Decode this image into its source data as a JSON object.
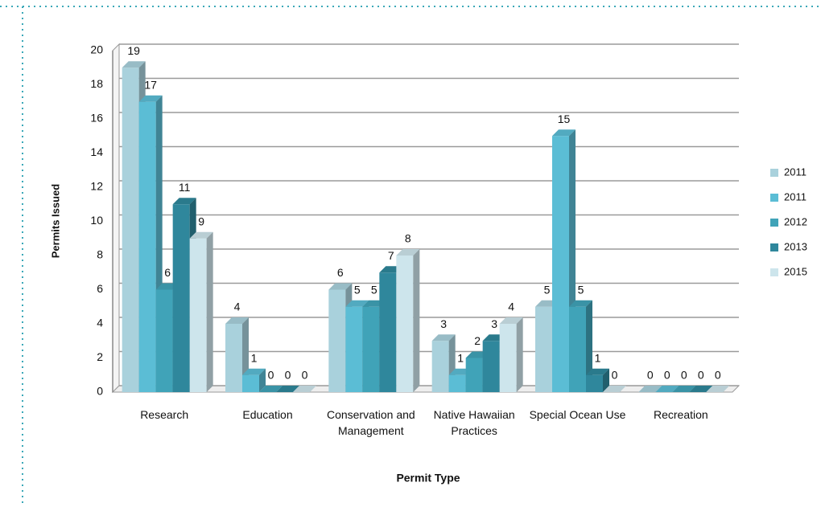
{
  "chart_data": {
    "type": "bar",
    "x_label": "Permit Type",
    "y_label": "Permits Issued",
    "categories": [
      "Research",
      "Education",
      "Conservation and Management",
      "Native Hawaiian Practices",
      "Special Ocean Use",
      "Recreation"
    ],
    "series": [
      {
        "name": "2011",
        "color": "#a9d1dc",
        "values": [
          19,
          4,
          6,
          3,
          5,
          0
        ]
      },
      {
        "name": "2011",
        "color": "#5bbdd5",
        "values": [
          17,
          1,
          5,
          1,
          15,
          0
        ]
      },
      {
        "name": "2012",
        "color": "#40a3b8",
        "values": [
          6,
          0,
          5,
          2,
          5,
          0
        ]
      },
      {
        "name": "2013",
        "color": "#2f879c",
        "values": [
          11,
          0,
          7,
          3,
          1,
          0
        ]
      },
      {
        "name": "2015",
        "color": "#cde5ec",
        "values": [
          9,
          0,
          8,
          4,
          0,
          0
        ]
      }
    ],
    "ylim": [
      0,
      20
    ],
    "yticks": [
      0,
      2,
      4,
      6,
      8,
      10,
      12,
      14,
      16,
      18,
      20
    ],
    "grid": true,
    "legend": "right"
  }
}
